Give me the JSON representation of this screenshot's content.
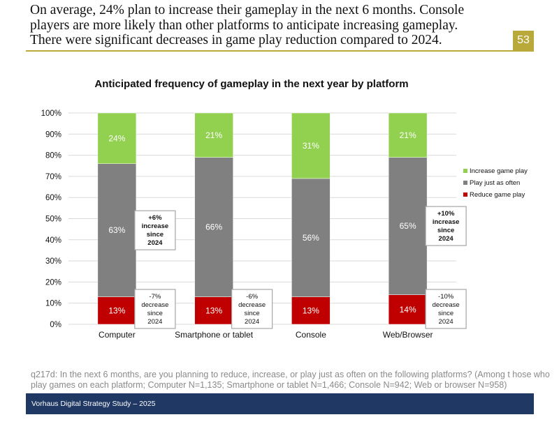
{
  "headline": {
    "lines": [
      "On average, 24% plan to increase their gameplay in the next 6 months. Console",
      "players are more likely than other platforms to anticipate increasing gameplay.",
      "There were significant decreases in game play reduction compared to 2024."
    ]
  },
  "page_number": "53",
  "chart_data": {
    "type": "bar",
    "stacked": true,
    "title": "Anticipated frequency of gameplay in the next year by platform",
    "categories": [
      "Computer",
      "Smartphone or tablet",
      "Console",
      "Web/Browser"
    ],
    "series": [
      {
        "name": "Reduce game play",
        "values": [
          13,
          13,
          13,
          14
        ],
        "labels": [
          "13%",
          "13%",
          "13%",
          "14%"
        ],
        "color": "#c00000"
      },
      {
        "name": "Play just as often",
        "values": [
          63,
          66,
          56,
          65
        ],
        "labels": [
          "63%",
          "66%",
          "56%",
          "65%"
        ],
        "color": "#808080"
      },
      {
        "name": "Increase game play",
        "values": [
          24,
          21,
          31,
          21
        ],
        "labels": [
          "24%",
          "21%",
          "31%",
          "21%"
        ],
        "color": "#92d050"
      }
    ],
    "legend_order": [
      "Increase game play",
      "Play just as often",
      "Reduce game play"
    ],
    "legend_position": "right",
    "ylim": [
      0,
      100
    ],
    "yticks": [
      "0%",
      "10%",
      "20%",
      "30%",
      "40%",
      "50%",
      "60%",
      "70%",
      "80%",
      "90%",
      "100%"
    ],
    "xlabel": "",
    "ylabel": "",
    "grid": true,
    "annotations": [
      {
        "category": "Computer",
        "segment": "Play just as often",
        "lines": [
          "+6%",
          "increase",
          "since",
          "2024"
        ],
        "bold": true
      },
      {
        "category": "Computer",
        "segment": "Reduce game play",
        "lines": [
          "-7%",
          "decrease",
          "since",
          "2024"
        ],
        "bold": false
      },
      {
        "category": "Smartphone or tablet",
        "segment": "Reduce game play",
        "lines": [
          "-6%",
          "decrease",
          "since",
          "2024"
        ],
        "bold": false
      },
      {
        "category": "Web/Browser",
        "segment": "Play just as often",
        "lines": [
          "+10%",
          "increase",
          "since",
          "2024"
        ],
        "bold": true
      },
      {
        "category": "Web/Browser",
        "segment": "Reduce game play",
        "lines": [
          "-10%",
          "decrease",
          "since",
          "2024"
        ],
        "bold": false
      }
    ]
  },
  "footnote": {
    "lines": [
      "q217d: In the next 6 months, are you planning to reduce, increase, or play just as often on the following platforms? (Among t hose who",
      "play games on each platform; Computer N=1,135; Smartphone or tablet N=1,466; Console N=942; Web or browser N=958)"
    ]
  },
  "footer": {
    "text": "Vorhaus Digital Strategy Study – 2025"
  }
}
